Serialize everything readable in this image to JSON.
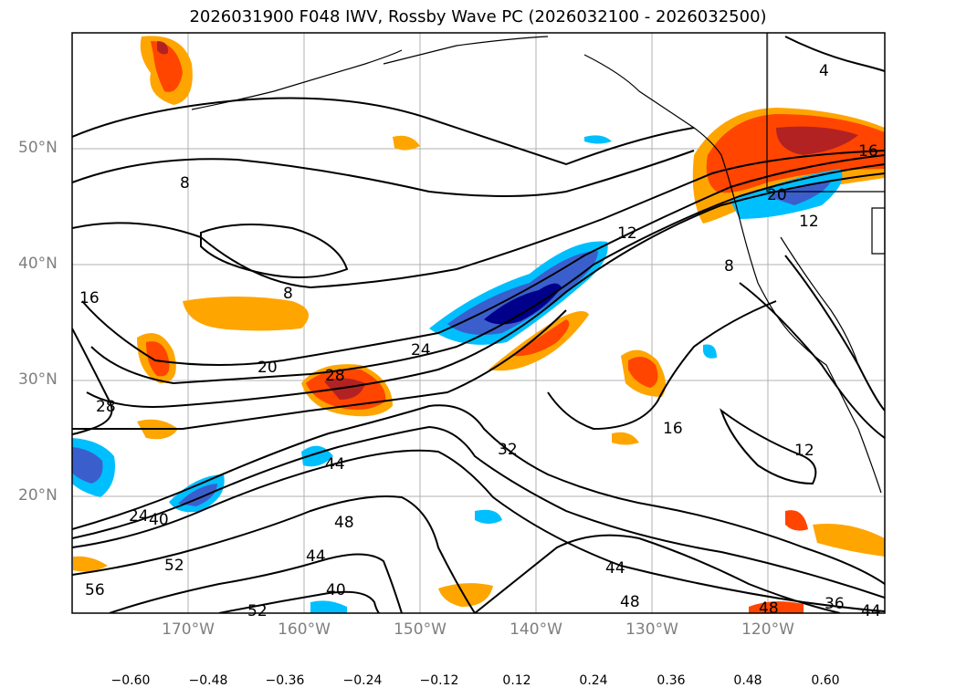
{
  "title": "2026031900 F048 IWV, Rossby Wave PC (2026032100 - 2026032500)",
  "lat_labels": [
    "50°N",
    "40°N",
    "30°N",
    "20°N"
  ],
  "lon_labels": [
    "170°W",
    "160°W",
    "150°W",
    "140°W",
    "130°W",
    "120°W"
  ],
  "colorbar": {
    "ticks": [
      "−0.60",
      "−0.48",
      "−0.36",
      "−0.24",
      "−0.12",
      "0.12",
      "0.24",
      "0.36",
      "0.48",
      "0.60"
    ],
    "colors": [
      "#9932cc",
      "#00008b",
      "#3a5fcd",
      "#00bfff",
      "#b0e2ff",
      "#ffffff",
      "#ffec8b",
      "#ffa500",
      "#ff4500",
      "#b22222",
      "#ff82ab"
    ]
  },
  "contour_labels": [
    "4",
    "8",
    "8",
    "8",
    "12",
    "12",
    "12",
    "16",
    "16",
    "16",
    "20",
    "20",
    "24",
    "24",
    "28",
    "28",
    "32",
    "36",
    "40",
    "40",
    "44",
    "44",
    "44",
    "48",
    "48",
    "48",
    "52",
    "52",
    "56",
    "44"
  ]
}
